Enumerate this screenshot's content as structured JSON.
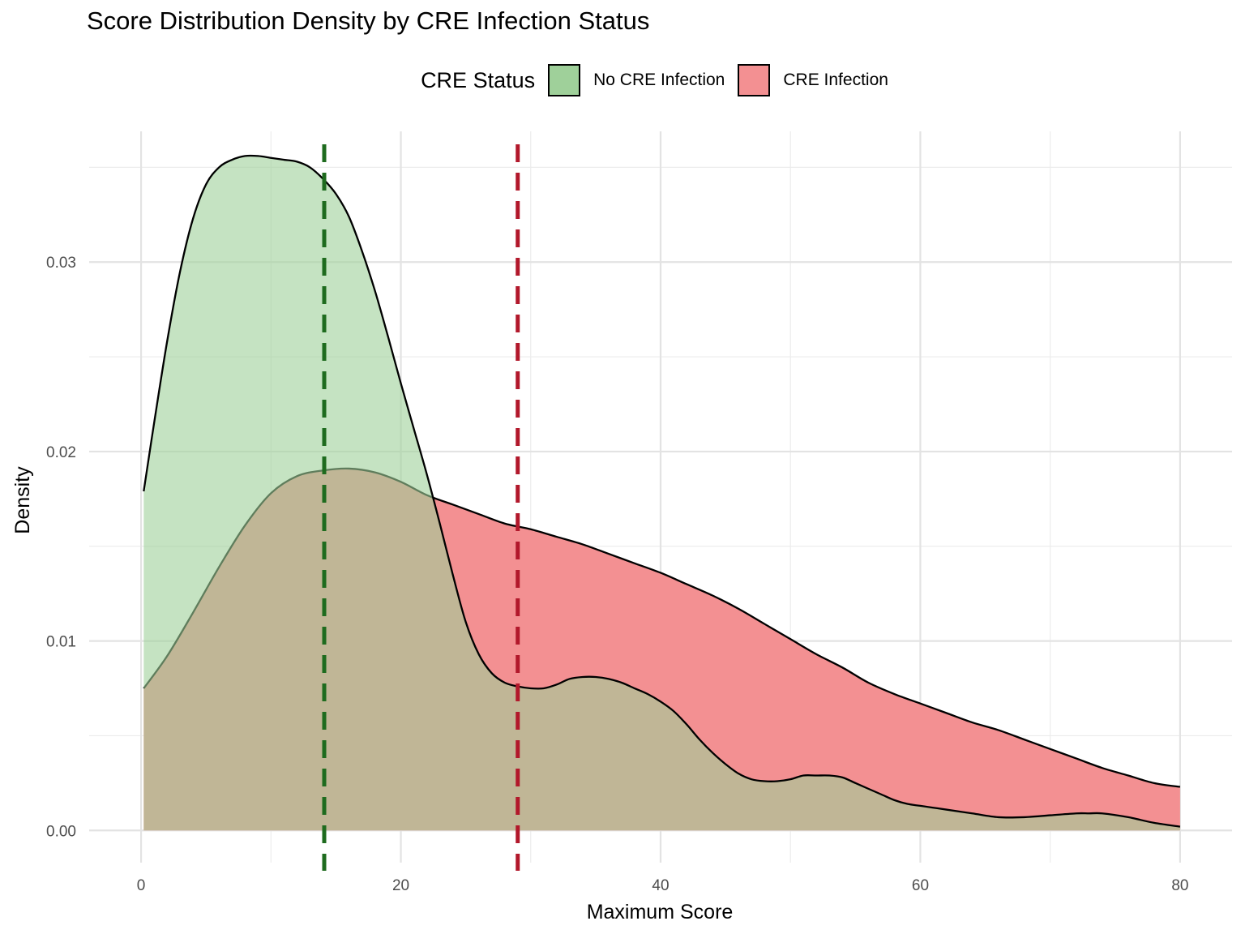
{
  "chart_data": {
    "type": "area",
    "title": "Score Distribution Density by CRE Infection Status",
    "xlabel": "Maximum Score",
    "ylabel": "Density",
    "xlim": [
      -4,
      84
    ],
    "ylim": [
      -0.0017,
      0.0369
    ],
    "x_ticks": [
      0,
      20,
      40,
      60,
      80
    ],
    "y_ticks": [
      0.0,
      0.01,
      0.02,
      0.03
    ],
    "y_tick_labels": [
      "0.00",
      "0.01",
      "0.02",
      "0.03"
    ],
    "grid": true,
    "legend": {
      "title": "CRE Status",
      "position": "top"
    },
    "series": [
      {
        "name": "No CRE Infection",
        "fill": "#9FD09A",
        "line_color": "#1E6B1E",
        "mean": 14.1,
        "points": [
          [
            0.2,
            0.0179
          ],
          [
            1,
            0.0215
          ],
          [
            2,
            0.0258
          ],
          [
            3,
            0.0295
          ],
          [
            4,
            0.0323
          ],
          [
            5,
            0.0341
          ],
          [
            6,
            0.035
          ],
          [
            7,
            0.0354
          ],
          [
            8,
            0.0356
          ],
          [
            9,
            0.0356
          ],
          [
            10,
            0.0355
          ],
          [
            11,
            0.0354
          ],
          [
            12,
            0.0353
          ],
          [
            13,
            0.035
          ],
          [
            14,
            0.0344
          ],
          [
            15,
            0.0336
          ],
          [
            16,
            0.0324
          ],
          [
            17,
            0.0306
          ],
          [
            18,
            0.0285
          ],
          [
            19,
            0.0261
          ],
          [
            20,
            0.0236
          ],
          [
            21,
            0.0212
          ],
          [
            22,
            0.0188
          ],
          [
            23,
            0.0162
          ],
          [
            24,
            0.0135
          ],
          [
            25,
            0.011
          ],
          [
            26,
            0.0093
          ],
          [
            27,
            0.0083
          ],
          [
            28,
            0.0078
          ],
          [
            29,
            0.0076
          ],
          [
            30,
            0.0075
          ],
          [
            31,
            0.0075
          ],
          [
            32,
            0.0077
          ],
          [
            33,
            0.008
          ],
          [
            34,
            0.0081
          ],
          [
            35,
            0.0081
          ],
          [
            36,
            0.008
          ],
          [
            37,
            0.0078
          ],
          [
            38,
            0.0075
          ],
          [
            39,
            0.0072
          ],
          [
            40,
            0.0068
          ],
          [
            41,
            0.0063
          ],
          [
            42,
            0.0056
          ],
          [
            43,
            0.0048
          ],
          [
            44,
            0.0041
          ],
          [
            45,
            0.0035
          ],
          [
            46,
            0.003
          ],
          [
            47,
            0.0027
          ],
          [
            48,
            0.0026
          ],
          [
            49,
            0.0026
          ],
          [
            50,
            0.0027
          ],
          [
            51,
            0.0029
          ],
          [
            52,
            0.0029
          ],
          [
            53,
            0.0029
          ],
          [
            54,
            0.0028
          ],
          [
            55,
            0.0025
          ],
          [
            56,
            0.0022
          ],
          [
            57,
            0.0019
          ],
          [
            58,
            0.0016
          ],
          [
            59,
            0.0014
          ],
          [
            60,
            0.0013
          ],
          [
            61,
            0.0012
          ],
          [
            62,
            0.0011
          ],
          [
            64,
            0.0009
          ],
          [
            66,
            0.0007
          ],
          [
            68,
            0.0007
          ],
          [
            70,
            0.0008
          ],
          [
            72,
            0.0009
          ],
          [
            73,
            0.0009
          ],
          [
            74,
            0.0009
          ],
          [
            76,
            0.0007
          ],
          [
            78,
            0.0004
          ],
          [
            80,
            0.0002
          ]
        ]
      },
      {
        "name": "CRE Infection",
        "fill": "#F39092",
        "line_color": "#B2182B",
        "mean": 29.0,
        "points": [
          [
            0.2,
            0.0075
          ],
          [
            2,
            0.0092
          ],
          [
            4,
            0.0115
          ],
          [
            6,
            0.0139
          ],
          [
            8,
            0.0161
          ],
          [
            10,
            0.0178
          ],
          [
            12,
            0.0187
          ],
          [
            14,
            0.019
          ],
          [
            16,
            0.0191
          ],
          [
            18,
            0.0189
          ],
          [
            20,
            0.0184
          ],
          [
            22,
            0.0177
          ],
          [
            24,
            0.0172
          ],
          [
            26,
            0.0167
          ],
          [
            28,
            0.0162
          ],
          [
            30,
            0.0159
          ],
          [
            32,
            0.0155
          ],
          [
            34,
            0.0151
          ],
          [
            36,
            0.0146
          ],
          [
            38,
            0.0141
          ],
          [
            40,
            0.0136
          ],
          [
            42,
            0.013
          ],
          [
            44,
            0.0124
          ],
          [
            46,
            0.0117
          ],
          [
            48,
            0.0109
          ],
          [
            50,
            0.0101
          ],
          [
            52,
            0.0093
          ],
          [
            54,
            0.0086
          ],
          [
            56,
            0.0078
          ],
          [
            58,
            0.0072
          ],
          [
            60,
            0.0067
          ],
          [
            62,
            0.0062
          ],
          [
            64,
            0.0057
          ],
          [
            66,
            0.0053
          ],
          [
            68,
            0.0048
          ],
          [
            70,
            0.0043
          ],
          [
            72,
            0.0038
          ],
          [
            74,
            0.0033
          ],
          [
            76,
            0.0029
          ],
          [
            78,
            0.0025
          ],
          [
            80,
            0.0023
          ]
        ]
      }
    ]
  }
}
